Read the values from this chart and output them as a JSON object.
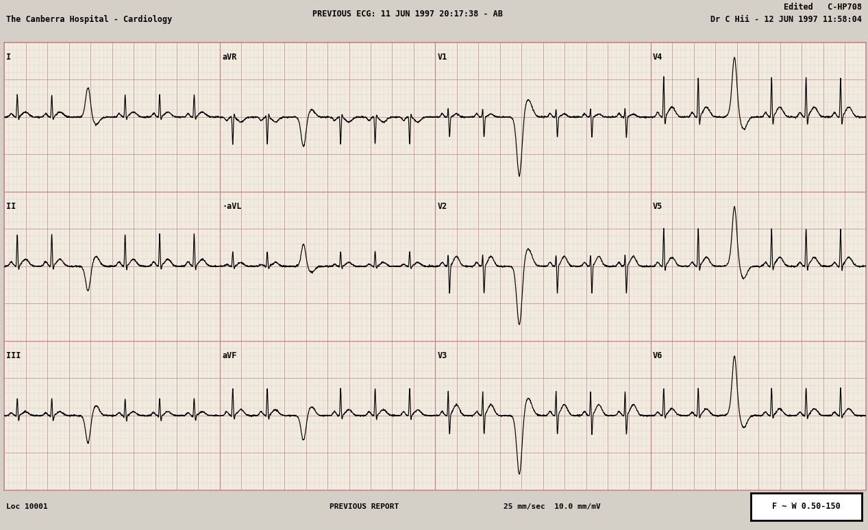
{
  "title_center": "PREVIOUS ECG: 11 JUN 1997 20:17:38 - AB",
  "title_center2": "The Canberra Hospital - Cardiology",
  "title_right": "Edited   C-HP708",
  "title_right2": "Dr C Hii - 12 JUN 1997 11:58:04",
  "bottom_left": "Loc 10001",
  "bottom_center": "PREVIOUS REPORT",
  "bottom_right": "25 mm/sec  10.0 mm/mV",
  "bottom_box": "F ~ W 0.50-150",
  "bg_color": "#e8e8e8",
  "grid_major_color": "#cc8888",
  "grid_minor_color": "#e0b8b8",
  "trace_color": "#000000",
  "text_color": "#000000",
  "lead_labels": [
    "I",
    "aVR",
    "V1",
    "V4",
    "II",
    "aVL",
    "V2",
    "V5",
    "III",
    "aVF",
    "V3",
    "V6"
  ]
}
